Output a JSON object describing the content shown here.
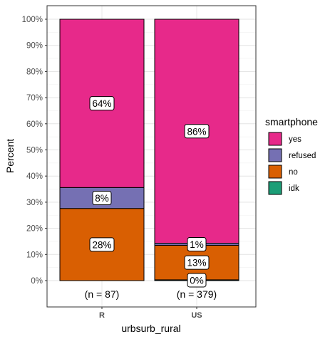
{
  "chart_data": {
    "type": "bar",
    "stacked": true,
    "categories": [
      "R",
      "US"
    ],
    "xlabel": "urbsurb_rural",
    "ylabel": "Percent",
    "ylim": [
      0,
      100
    ],
    "y_ticks": [
      "0%",
      "10%",
      "20%",
      "30%",
      "40%",
      "50%",
      "60%",
      "70%",
      "80%",
      "90%",
      "100%"
    ],
    "grid": true,
    "legend": {
      "title": "smartphone",
      "position": "right",
      "entries": [
        {
          "label": "yes",
          "color": "#e7298a"
        },
        {
          "label": "refused",
          "color": "#7570b3"
        },
        {
          "label": "no",
          "color": "#d95f02"
        },
        {
          "label": "idk",
          "color": "#1b9e77"
        }
      ]
    },
    "series": [
      {
        "name": "idk",
        "color": "#1b9e77",
        "values": [
          0,
          0.3
        ],
        "labels": [
          "",
          "0%"
        ]
      },
      {
        "name": "no",
        "color": "#d95f02",
        "values": [
          27.6,
          13.2
        ],
        "labels": [
          "28%",
          "13%"
        ]
      },
      {
        "name": "refused",
        "color": "#7570b3",
        "values": [
          8.0,
          0.8
        ],
        "labels": [
          "8%",
          "1%"
        ]
      },
      {
        "name": "yes",
        "color": "#e7298a",
        "values": [
          64.4,
          85.7
        ],
        "labels": [
          "64%",
          "86%"
        ]
      }
    ],
    "counts": [
      "(n = 87)",
      "(n = 379)"
    ]
  }
}
